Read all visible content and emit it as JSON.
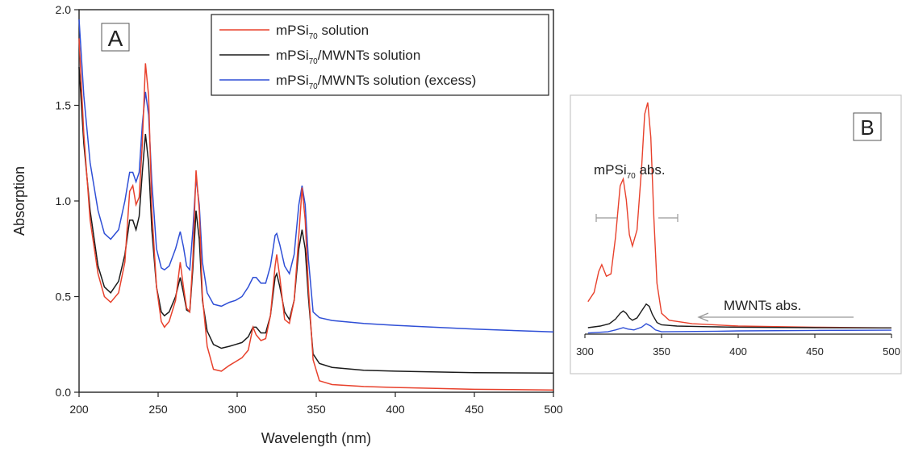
{
  "chart_data": [
    {
      "panel_label": "A",
      "type": "line",
      "xlabel": "Wavelength (nm)",
      "ylabel": "Absorption",
      "xlim": [
        200,
        500
      ],
      "ylim": [
        0,
        2.0
      ],
      "x_ticks": [
        "200",
        "250",
        "300",
        "350",
        "400",
        "450",
        "500"
      ],
      "y_ticks": [
        "0.0",
        "0.5",
        "1.0",
        "1.5",
        "2.0"
      ],
      "legend": {
        "placement": "top-center",
        "entries": [
          {
            "prefix": "mPSi",
            "sub": "70",
            "suffix": " solution",
            "color": "#e8412c"
          },
          {
            "prefix": "mPSi",
            "sub": "70",
            "suffix": "/MWNTs solution",
            "color": "#1a1a1a"
          },
          {
            "prefix": "mPSi",
            "sub": "70",
            "suffix": "/MWNTs solution (excess)",
            "color": "#2f4fd6"
          }
        ]
      },
      "series": [
        {
          "name": "mPSi70 solution",
          "color": "#e8412c",
          "points": [
            [
              200,
              1.85
            ],
            [
              203,
              1.35
            ],
            [
              207,
              0.9
            ],
            [
              212,
              0.62
            ],
            [
              216,
              0.5
            ],
            [
              220,
              0.47
            ],
            [
              225,
              0.52
            ],
            [
              229,
              0.68
            ],
            [
              232,
              1.05
            ],
            [
              234,
              1.08
            ],
            [
              236,
              0.98
            ],
            [
              238,
              1.02
            ],
            [
              240,
              1.3
            ],
            [
              242,
              1.72
            ],
            [
              244,
              1.55
            ],
            [
              246,
              0.95
            ],
            [
              249,
              0.55
            ],
            [
              252,
              0.37
            ],
            [
              254,
              0.34
            ],
            [
              257,
              0.37
            ],
            [
              261,
              0.48
            ],
            [
              264,
              0.68
            ],
            [
              266,
              0.55
            ],
            [
              268,
              0.44
            ],
            [
              270,
              0.42
            ],
            [
              272,
              0.7
            ],
            [
              274,
              1.16
            ],
            [
              276,
              0.95
            ],
            [
              278,
              0.5
            ],
            [
              281,
              0.24
            ],
            [
              285,
              0.12
            ],
            [
              290,
              0.11
            ],
            [
              295,
              0.14
            ],
            [
              299,
              0.16
            ],
            [
              303,
              0.18
            ],
            [
              307,
              0.22
            ],
            [
              310,
              0.34
            ],
            [
              312,
              0.3
            ],
            [
              315,
              0.27
            ],
            [
              318,
              0.28
            ],
            [
              321,
              0.4
            ],
            [
              324,
              0.66
            ],
            [
              325,
              0.72
            ],
            [
              327,
              0.6
            ],
            [
              330,
              0.38
            ],
            [
              333,
              0.36
            ],
            [
              336,
              0.48
            ],
            [
              339,
              0.82
            ],
            [
              341,
              1.07
            ],
            [
              343,
              0.9
            ],
            [
              345,
              0.55
            ],
            [
              348,
              0.17
            ],
            [
              352,
              0.06
            ],
            [
              360,
              0.04
            ],
            [
              380,
              0.03
            ],
            [
              400,
              0.025
            ],
            [
              450,
              0.015
            ],
            [
              500,
              0.012
            ]
          ]
        },
        {
          "name": "mPSi70/MWNTs solution",
          "color": "#1a1a1a",
          "points": [
            [
              200,
              1.7
            ],
            [
              203,
              1.3
            ],
            [
              207,
              0.95
            ],
            [
              212,
              0.66
            ],
            [
              216,
              0.55
            ],
            [
              220,
              0.52
            ],
            [
              225,
              0.58
            ],
            [
              229,
              0.72
            ],
            [
              232,
              0.9
            ],
            [
              234,
              0.9
            ],
            [
              236,
              0.85
            ],
            [
              238,
              0.92
            ],
            [
              240,
              1.15
            ],
            [
              242,
              1.35
            ],
            [
              244,
              1.2
            ],
            [
              246,
              0.85
            ],
            [
              249,
              0.55
            ],
            [
              252,
              0.42
            ],
            [
              254,
              0.4
            ],
            [
              257,
              0.42
            ],
            [
              261,
              0.5
            ],
            [
              264,
              0.6
            ],
            [
              266,
              0.52
            ],
            [
              268,
              0.43
            ],
            [
              270,
              0.42
            ],
            [
              272,
              0.65
            ],
            [
              274,
              0.95
            ],
            [
              276,
              0.8
            ],
            [
              278,
              0.48
            ],
            [
              281,
              0.32
            ],
            [
              285,
              0.25
            ],
            [
              290,
              0.23
            ],
            [
              295,
              0.24
            ],
            [
              299,
              0.25
            ],
            [
              303,
              0.26
            ],
            [
              307,
              0.29
            ],
            [
              310,
              0.34
            ],
            [
              312,
              0.34
            ],
            [
              315,
              0.31
            ],
            [
              318,
              0.31
            ],
            [
              321,
              0.4
            ],
            [
              324,
              0.6
            ],
            [
              325,
              0.62
            ],
            [
              327,
              0.55
            ],
            [
              330,
              0.42
            ],
            [
              333,
              0.38
            ],
            [
              336,
              0.48
            ],
            [
              339,
              0.75
            ],
            [
              341,
              0.85
            ],
            [
              343,
              0.75
            ],
            [
              345,
              0.5
            ],
            [
              348,
              0.2
            ],
            [
              352,
              0.15
            ],
            [
              360,
              0.13
            ],
            [
              380,
              0.115
            ],
            [
              400,
              0.11
            ],
            [
              450,
              0.102
            ],
            [
              500,
              0.1
            ]
          ]
        },
        {
          "name": "mPSi70/MWNTs solution (excess)",
          "color": "#2f4fd6",
          "points": [
            [
              200,
              1.95
            ],
            [
              203,
              1.55
            ],
            [
              207,
              1.2
            ],
            [
              212,
              0.95
            ],
            [
              216,
              0.83
            ],
            [
              220,
              0.8
            ],
            [
              225,
              0.85
            ],
            [
              229,
              1.0
            ],
            [
              232,
              1.15
            ],
            [
              234,
              1.15
            ],
            [
              236,
              1.1
            ],
            [
              238,
              1.15
            ],
            [
              240,
              1.4
            ],
            [
              242,
              1.57
            ],
            [
              244,
              1.45
            ],
            [
              246,
              1.1
            ],
            [
              249,
              0.75
            ],
            [
              252,
              0.65
            ],
            [
              254,
              0.64
            ],
            [
              257,
              0.66
            ],
            [
              261,
              0.75
            ],
            [
              264,
              0.84
            ],
            [
              266,
              0.76
            ],
            [
              268,
              0.66
            ],
            [
              270,
              0.64
            ],
            [
              272,
              0.85
            ],
            [
              274,
              1.12
            ],
            [
              276,
              0.98
            ],
            [
              278,
              0.68
            ],
            [
              281,
              0.52
            ],
            [
              285,
              0.46
            ],
            [
              290,
              0.45
            ],
            [
              295,
              0.47
            ],
            [
              299,
              0.48
            ],
            [
              303,
              0.5
            ],
            [
              307,
              0.55
            ],
            [
              310,
              0.6
            ],
            [
              312,
              0.6
            ],
            [
              315,
              0.57
            ],
            [
              318,
              0.57
            ],
            [
              321,
              0.66
            ],
            [
              324,
              0.82
            ],
            [
              325,
              0.83
            ],
            [
              327,
              0.77
            ],
            [
              330,
              0.66
            ],
            [
              333,
              0.62
            ],
            [
              336,
              0.72
            ],
            [
              339,
              0.98
            ],
            [
              341,
              1.08
            ],
            [
              343,
              0.98
            ],
            [
              345,
              0.7
            ],
            [
              348,
              0.42
            ],
            [
              352,
              0.39
            ],
            [
              360,
              0.375
            ],
            [
              380,
              0.36
            ],
            [
              400,
              0.35
            ],
            [
              450,
              0.33
            ],
            [
              500,
              0.315
            ]
          ]
        }
      ]
    },
    {
      "panel_label": "B",
      "type": "line",
      "xlim": [
        300,
        500
      ],
      "x_ticks": [
        "300",
        "350",
        "400",
        "450",
        "500"
      ],
      "annotations": [
        {
          "prefix": "mPSi",
          "sub": "70",
          "suffix": " abs."
        },
        {
          "prefix": "MWNTs abs.",
          "sub": "",
          "suffix": ""
        }
      ],
      "series": [
        {
          "name": "mPSi70 solution",
          "color": "#e8412c",
          "points": [
            [
              302,
              0.14
            ],
            [
              306,
              0.18
            ],
            [
              309,
              0.27
            ],
            [
              311,
              0.3
            ],
            [
              314,
              0.25
            ],
            [
              317,
              0.26
            ],
            [
              320,
              0.42
            ],
            [
              323,
              0.64
            ],
            [
              325,
              0.67
            ],
            [
              327,
              0.58
            ],
            [
              329,
              0.43
            ],
            [
              331,
              0.38
            ],
            [
              334,
              0.45
            ],
            [
              337,
              0.72
            ],
            [
              339,
              0.95
            ],
            [
              341,
              1.0
            ],
            [
              343,
              0.85
            ],
            [
              345,
              0.5
            ],
            [
              347,
              0.22
            ],
            [
              350,
              0.09
            ],
            [
              355,
              0.06
            ],
            [
              370,
              0.045
            ],
            [
              400,
              0.035
            ],
            [
              450,
              0.03
            ],
            [
              500,
              0.027
            ]
          ]
        },
        {
          "name": "mPSi70/MWNTs solution",
          "color": "#1a1a1a",
          "points": [
            [
              302,
              0.028
            ],
            [
              310,
              0.035
            ],
            [
              316,
              0.045
            ],
            [
              320,
              0.065
            ],
            [
              323,
              0.09
            ],
            [
              325,
              0.1
            ],
            [
              327,
              0.09
            ],
            [
              329,
              0.07
            ],
            [
              331,
              0.06
            ],
            [
              334,
              0.07
            ],
            [
              337,
              0.1
            ],
            [
              340,
              0.13
            ],
            [
              342,
              0.12
            ],
            [
              344,
              0.085
            ],
            [
              347,
              0.05
            ],
            [
              350,
              0.04
            ],
            [
              360,
              0.035
            ],
            [
              380,
              0.032
            ],
            [
              400,
              0.03
            ],
            [
              450,
              0.028
            ],
            [
              500,
              0.027
            ]
          ]
        },
        {
          "name": "mPSi70/MWNTs solution (excess)",
          "color": "#2f4fd6",
          "points": [
            [
              302,
              0.005
            ],
            [
              315,
              0.01
            ],
            [
              320,
              0.018
            ],
            [
              325,
              0.028
            ],
            [
              328,
              0.022
            ],
            [
              332,
              0.018
            ],
            [
              337,
              0.03
            ],
            [
              340,
              0.045
            ],
            [
              343,
              0.035
            ],
            [
              346,
              0.018
            ],
            [
              350,
              0.01
            ],
            [
              380,
              0.012
            ],
            [
              400,
              0.014
            ],
            [
              450,
              0.016
            ],
            [
              500,
              0.017
            ]
          ]
        }
      ]
    }
  ]
}
